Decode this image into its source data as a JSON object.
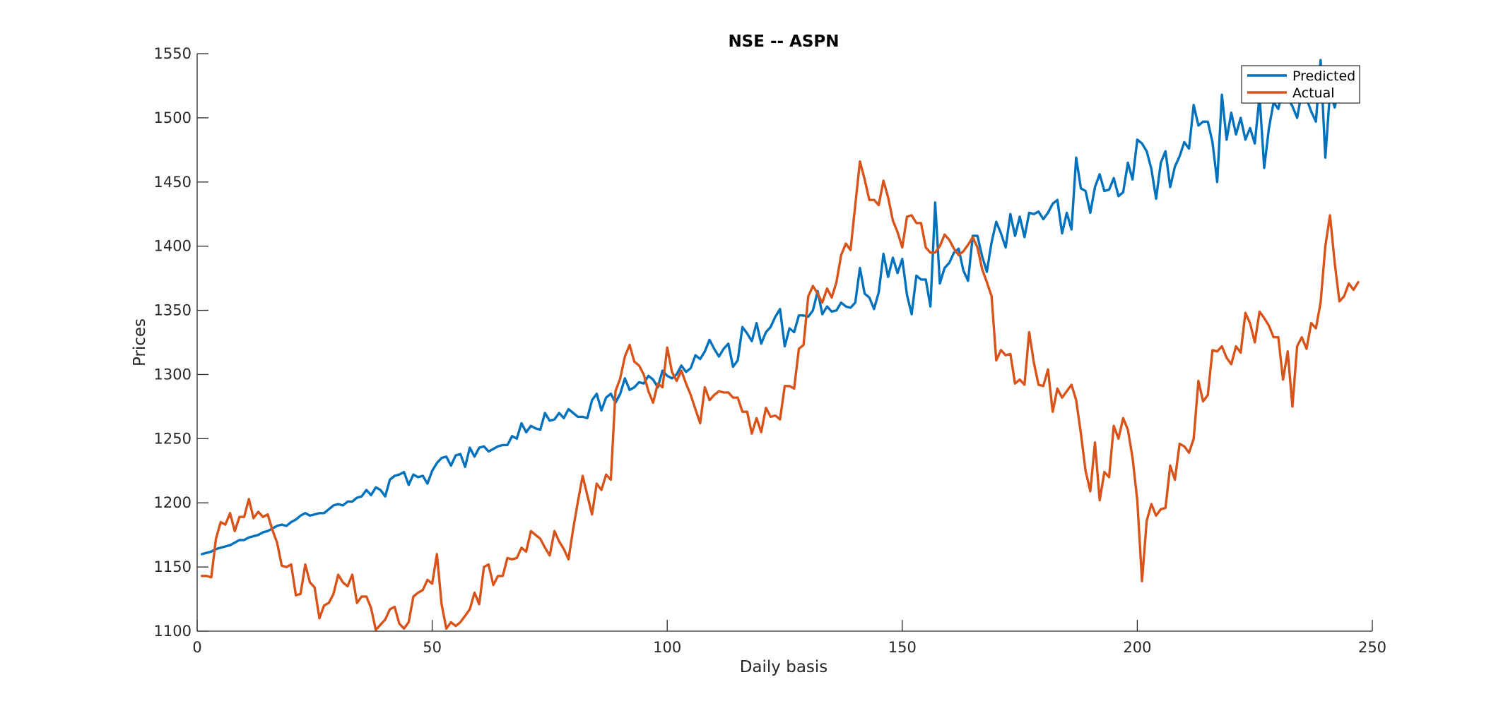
{
  "chart_data": {
    "type": "line",
    "title": "NSE -- ASPN",
    "xlabel": "Daily basis",
    "ylabel": "Prices",
    "xlim": [
      0,
      250
    ],
    "ylim": [
      1100,
      1550
    ],
    "xticks": [
      0,
      50,
      100,
      150,
      200,
      250
    ],
    "yticks": [
      1100,
      1150,
      1200,
      1250,
      1300,
      1350,
      1400,
      1450,
      1500,
      1550
    ],
    "grid": false,
    "legend_position": "top-right",
    "series": [
      {
        "name": "Predicted",
        "color": "#0072BD",
        "x_start": 1,
        "values": [
          1160,
          1161,
          1162,
          1164,
          1165,
          1166,
          1167,
          1169,
          1171,
          1171,
          1173,
          1174,
          1175,
          1177,
          1178,
          1180,
          1182,
          1183,
          1182,
          1185,
          1187,
          1190,
          1192,
          1190,
          1191,
          1192,
          1192,
          1195,
          1198,
          1199,
          1198,
          1201,
          1201,
          1204,
          1205,
          1210,
          1206,
          1212,
          1210,
          1205,
          1218,
          1221,
          1222,
          1224,
          1214,
          1222,
          1220,
          1221,
          1215,
          1225,
          1231,
          1235,
          1236,
          1229,
          1237,
          1238,
          1228,
          1243,
          1236,
          1243,
          1244,
          1240,
          1242,
          1244,
          1245,
          1245,
          1252,
          1250,
          1262,
          1255,
          1260,
          1258,
          1257,
          1270,
          1264,
          1265,
          1270,
          1266,
          1273,
          1270,
          1267,
          1267,
          1266,
          1280,
          1285,
          1272,
          1282,
          1285,
          1278,
          1285,
          1297,
          1288,
          1290,
          1294,
          1293,
          1299,
          1296,
          1290,
          1303,
          1299,
          1297,
          1300,
          1307,
          1302,
          1305,
          1315,
          1312,
          1318,
          1327,
          1320,
          1314,
          1320,
          1324,
          1306,
          1311,
          1337,
          1332,
          1326,
          1340,
          1324,
          1333,
          1337,
          1345,
          1351,
          1322,
          1336,
          1333,
          1346,
          1346,
          1345,
          1350,
          1365,
          1347,
          1353,
          1349,
          1350,
          1356,
          1353,
          1352,
          1356,
          1383,
          1363,
          1360,
          1351,
          1364,
          1394,
          1376,
          1391,
          1379,
          1390,
          1362,
          1347,
          1377,
          1374,
          1374,
          1353,
          1434,
          1371,
          1383,
          1387,
          1395,
          1398,
          1381,
          1373,
          1408,
          1408,
          1392,
          1380,
          1403,
          1419,
          1410,
          1399,
          1425,
          1408,
          1423,
          1407,
          1426,
          1425,
          1427,
          1421,
          1426,
          1433,
          1436,
          1410,
          1426,
          1413,
          1469,
          1445,
          1443,
          1426,
          1446,
          1456,
          1443,
          1444,
          1453,
          1439,
          1442,
          1465,
          1452,
          1483,
          1480,
          1474,
          1460,
          1437,
          1465,
          1474,
          1446,
          1462,
          1470,
          1481,
          1476,
          1510,
          1494,
          1497,
          1497,
          1481,
          1450,
          1518,
          1483,
          1504,
          1487,
          1500,
          1483,
          1492,
          1480,
          1517,
          1461,
          1492,
          1512,
          1507,
          1523,
          1516,
          1509,
          1500,
          1520,
          1515,
          1505,
          1497,
          1545,
          1469,
          1520,
          1508,
          1525,
          1520
        ]
      },
      {
        "name": "Actual",
        "color": "#D95319",
        "x_start": 1,
        "values": [
          1143,
          1143,
          1142,
          1172,
          1185,
          1183,
          1192,
          1178,
          1189,
          1189,
          1203,
          1188,
          1193,
          1189,
          1191,
          1179,
          1169,
          1151,
          1150,
          1152,
          1128,
          1129,
          1152,
          1138,
          1134,
          1110,
          1120,
          1122,
          1129,
          1144,
          1138,
          1135,
          1144,
          1122,
          1127,
          1127,
          1118,
          1101,
          1105,
          1109,
          1117,
          1119,
          1106,
          1102,
          1107,
          1127,
          1130,
          1132,
          1140,
          1137,
          1160,
          1121,
          1102,
          1107,
          1104,
          1107,
          1112,
          1117,
          1130,
          1121,
          1150,
          1152,
          1136,
          1143,
          1143,
          1157,
          1156,
          1157,
          1165,
          1162,
          1178,
          1175,
          1172,
          1165,
          1159,
          1178,
          1170,
          1164,
          1156,
          1180,
          1201,
          1221,
          1206,
          1191,
          1215,
          1210,
          1222,
          1218,
          1287,
          1297,
          1314,
          1323,
          1310,
          1307,
          1300,
          1287,
          1278,
          1293,
          1290,
          1321,
          1302,
          1295,
          1303,
          1293,
          1284,
          1273,
          1262,
          1290,
          1280,
          1284,
          1287,
          1286,
          1286,
          1282,
          1282,
          1271,
          1271,
          1254,
          1266,
          1255,
          1274,
          1267,
          1268,
          1265,
          1291,
          1291,
          1289,
          1320,
          1323,
          1361,
          1369,
          1363,
          1356,
          1367,
          1360,
          1372,
          1393,
          1402,
          1397,
          1432,
          1466,
          1452,
          1436,
          1436,
          1432,
          1451,
          1438,
          1420,
          1411,
          1399,
          1423,
          1424,
          1418,
          1418,
          1399,
          1395,
          1395,
          1400,
          1409,
          1405,
          1398,
          1393,
          1396,
          1401,
          1407,
          1399,
          1382,
          1372,
          1361,
          1311,
          1319,
          1315,
          1316,
          1293,
          1296,
          1292,
          1333,
          1309,
          1292,
          1291,
          1304,
          1271,
          1289,
          1282,
          1287,
          1292,
          1280,
          1254,
          1225,
          1209,
          1247,
          1202,
          1224,
          1220,
          1260,
          1250,
          1266,
          1257,
          1235,
          1202,
          1139,
          1186,
          1199,
          1190,
          1195,
          1196,
          1229,
          1218,
          1246,
          1244,
          1239,
          1250,
          1295,
          1279,
          1284,
          1319,
          1318,
          1322,
          1313,
          1308,
          1322,
          1317,
          1348,
          1340,
          1325,
          1349,
          1344,
          1338,
          1329,
          1329,
          1296,
          1318,
          1275,
          1322,
          1329,
          1320,
          1340,
          1336,
          1356,
          1400,
          1424,
          1387,
          1357,
          1361,
          1371,
          1366,
          1372
        ]
      }
    ]
  }
}
